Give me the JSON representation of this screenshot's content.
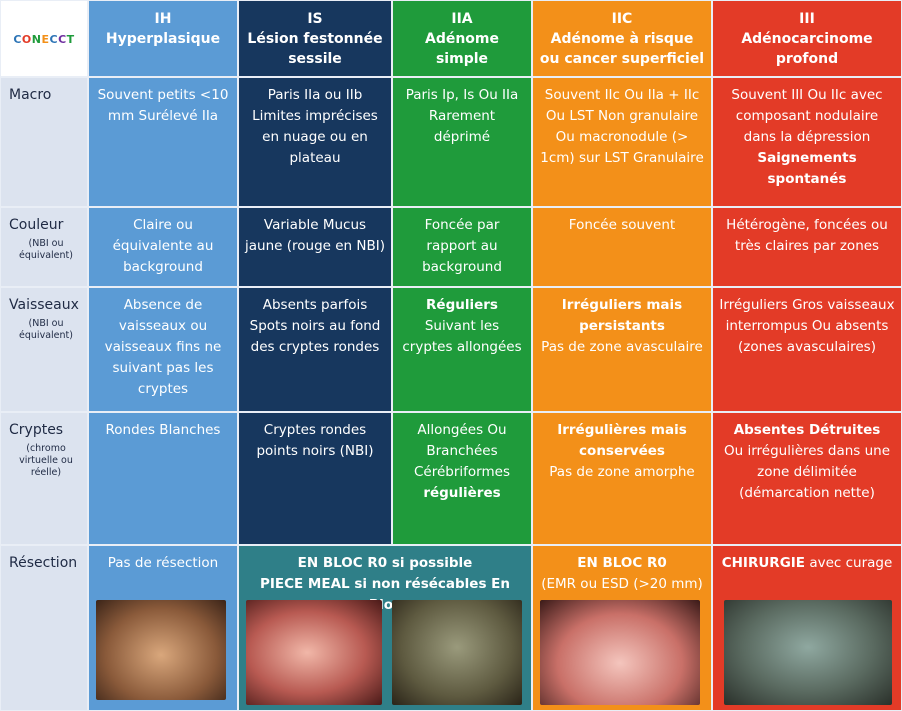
{
  "logo": "CONECCT",
  "columns": [
    {
      "code": "IH",
      "name": "Hyperplasique"
    },
    {
      "code": "IS",
      "name": "Lésion festonnée sessile"
    },
    {
      "code": "IIA",
      "name": "Adénome simple"
    },
    {
      "code": "IIC",
      "name": "Adénome à risque ou cancer superficiel"
    },
    {
      "code": "III",
      "name": "Adénocarcinome profond"
    }
  ],
  "rows": [
    {
      "label": "Macro",
      "cells": [
        [
          [
            {
              "text": "Souvent petits <10 mm Surélevé IIa"
            }
          ]
        ],
        [
          [
            {
              "text": "Paris IIa ou IIb Limites imprécises en nuage ou en plateau"
            }
          ]
        ],
        [
          [
            {
              "text": "Paris Ip, Is Ou IIa Rarement déprimé"
            }
          ]
        ],
        [
          [
            {
              "text": "Souvent IIc Ou IIa + IIc Ou LST Non granulaire Ou macronodule (> 1cm) sur LST Granulaire"
            }
          ]
        ],
        [
          [
            {
              "text": "Souvent III Ou IIc avec composant nodulaire dans la dépression"
            }
          ],
          [
            {
              "text": "Saignements spontanés",
              "bold": true
            }
          ]
        ]
      ]
    },
    {
      "label": "Couleur",
      "note": "(NBI ou équivalent)",
      "cells": [
        [
          [
            {
              "text": "Claire ou équivalente au background"
            }
          ]
        ],
        [
          [
            {
              "text": "Variable Mucus jaune (rouge en NBI)"
            }
          ]
        ],
        [
          [
            {
              "text": "Foncée par rapport au background"
            }
          ]
        ],
        [
          [
            {
              "text": "Foncée souvent"
            }
          ]
        ],
        [
          [
            {
              "text": "Hétérogène, foncées ou très claires par zones"
            }
          ]
        ]
      ]
    },
    {
      "label": "Vaisseaux",
      "note": "(NBI ou équivalent)",
      "cells": [
        [
          [
            {
              "text": "Absence de vaisseaux ou vaisseaux fins ne suivant pas les cryptes"
            }
          ]
        ],
        [
          [
            {
              "text": "Absents parfois Spots noirs au fond des cryptes rondes"
            }
          ]
        ],
        [
          [
            {
              "text": "Réguliers",
              "bold": true
            }
          ],
          [
            {
              "text": "Suivant les cryptes allongées"
            }
          ]
        ],
        [
          [
            {
              "text": "Irréguliers mais persistants",
              "bold": true
            }
          ],
          [
            {
              "text": "Pas de zone avasculaire"
            }
          ]
        ],
        [
          [
            {
              "text": "Irréguliers Gros vaisseaux interrompus Ou absents (zones avasculaires)"
            }
          ]
        ]
      ]
    },
    {
      "label": "Cryptes",
      "note": "(chromo virtuelle ou réelle)",
      "cells": [
        [
          [
            {
              "text": "Rondes Blanches"
            }
          ]
        ],
        [
          [
            {
              "text": "Cryptes rondes points noirs (NBI)"
            }
          ]
        ],
        [
          [
            {
              "text": "Allongées Ou Branchées Cérébriformes"
            }
          ],
          [
            {
              "text": "régulières",
              "bold": true
            }
          ]
        ],
        [
          [
            {
              "text": "Irrégulières mais conservées",
              "bold": true
            }
          ],
          [
            {
              "text": "Pas de zone amorphe"
            }
          ]
        ],
        [
          [
            {
              "text": "Absentes Détruites",
              "bold": true
            }
          ],
          [
            {
              "text": "Ou irrégulières dans une zone délimitée (démarcation nette)"
            }
          ]
        ]
      ]
    }
  ],
  "resection": {
    "label": "Résection",
    "cells": [
      [
        [
          {
            "text": "Pas de résection"
          }
        ]
      ],
      [
        [
          {
            "text": "EN BLOC R0 si possible",
            "bold": true
          }
        ],
        [
          {
            "text": "PIECE MEAL si non résécables En Bloc",
            "bold": true
          }
        ]
      ],
      [
        [
          {
            "text": "EN BLOC R0",
            "bold": true
          }
        ],
        [
          {
            "text": "(EMR ou ESD (>20 mm)"
          }
        ]
      ],
      [
        [
          {
            "text": "CHIRURGIE",
            "bold": true
          },
          {
            "text": " avec curage"
          }
        ]
      ]
    ]
  }
}
